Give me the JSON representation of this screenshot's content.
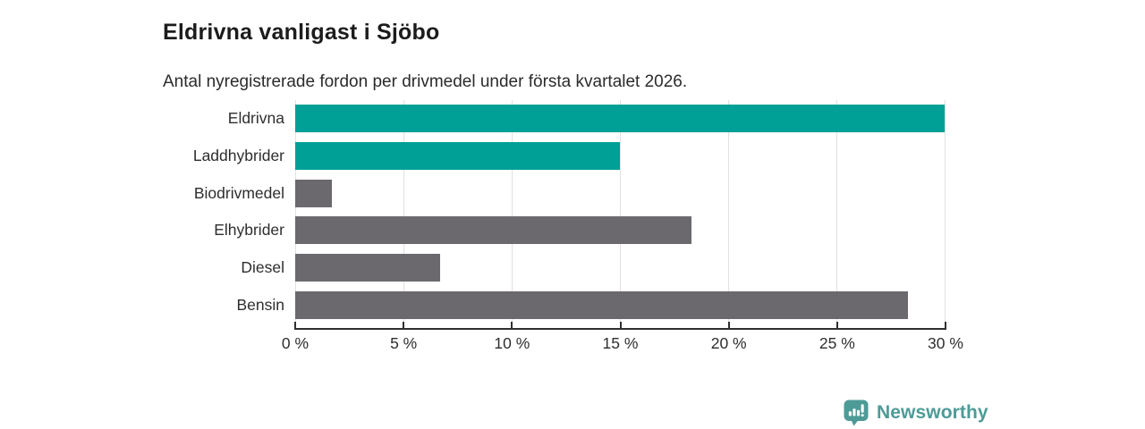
{
  "header": {
    "title": "Eldrivna vanligast i Sjöbo",
    "subtitle": "Antal nyregistrerade fordon per drivmedel under första kvartalet 2026."
  },
  "chart_data": {
    "type": "bar",
    "orientation": "horizontal",
    "title": "Eldrivna vanligast i Sjöbo",
    "subtitle": "Antal nyregistrerade fordon per drivmedel under första kvartalet 2026.",
    "categories": [
      "Eldrivna",
      "Laddhybrider",
      "Biodrivmedel",
      "Elhybrider",
      "Diesel",
      "Bensin"
    ],
    "values": [
      30,
      15,
      1.7,
      18.3,
      6.7,
      28.3
    ],
    "unit": "%",
    "xlabel": "",
    "ylabel": "",
    "xlim": [
      0,
      30
    ],
    "x_ticks": [
      0,
      5,
      10,
      15,
      20,
      25,
      30
    ],
    "x_tick_labels": [
      "0 %",
      "5 %",
      "10 %",
      "15 %",
      "20 %",
      "25 %",
      "30 %"
    ],
    "bar_colors": [
      "#00a096",
      "#00a096",
      "#6c696e",
      "#6c696e",
      "#6c696e",
      "#6c696e"
    ],
    "highlight_color": "#00a096",
    "default_color": "#6c696e",
    "gridline_color": "#e0e0e0",
    "grid": "vertical",
    "legend": "none"
  },
  "branding": {
    "label": "Newsworthy",
    "color": "#4d9b97",
    "icon": "newsworthy-logo-icon"
  }
}
